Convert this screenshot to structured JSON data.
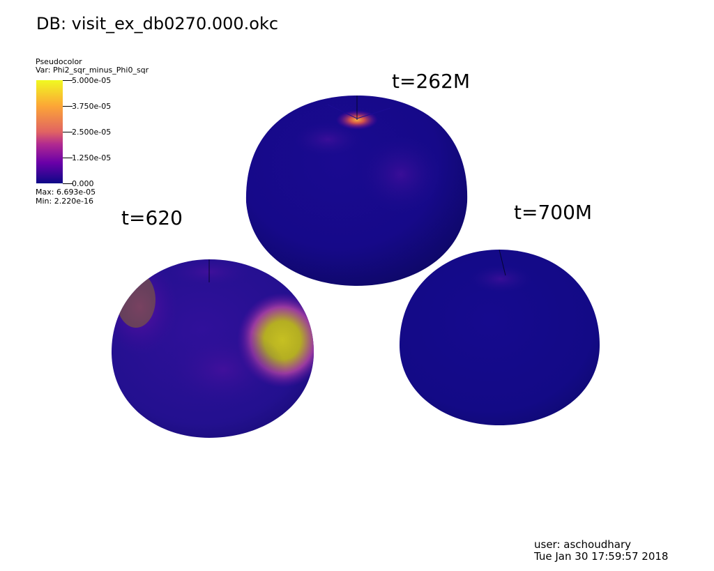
{
  "header": {
    "db_label": "DB: visit_ex_db0270.000.okc"
  },
  "legend": {
    "plot_type": "Pseudocolor",
    "variable": "Var: Phi2_sqr_minus_Phi0_sqr",
    "ticks": [
      "5.000e-05",
      "3.750e-05",
      "2.500e-05",
      "1.250e-05",
      "0.000"
    ],
    "max": "Max: 6.693e-05",
    "min": "Min: 2.220e-16",
    "colors": [
      "#0d0887",
      "#6a00a8",
      "#b12a90",
      "#e16462",
      "#fca636",
      "#f0f921"
    ]
  },
  "labels": {
    "t1": "t=262M",
    "t2": "t=620",
    "t3": "t=700M"
  },
  "footer": {
    "user": "user: aschoudhary",
    "timestamp": "Tue Jan 30 17:59:57 2018"
  }
}
